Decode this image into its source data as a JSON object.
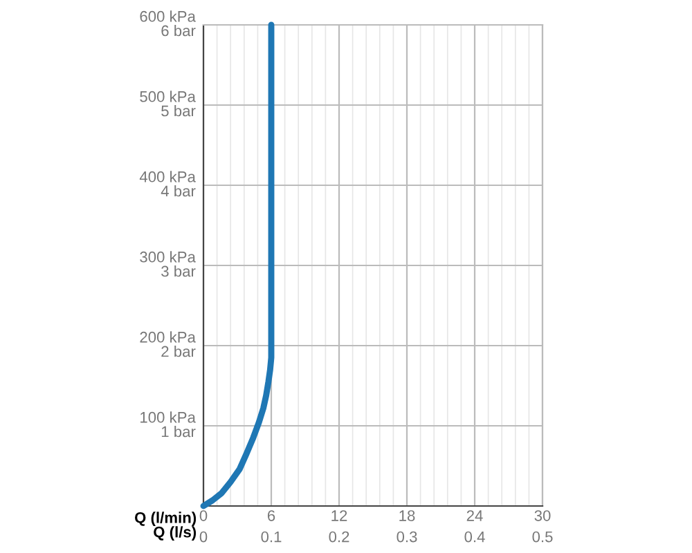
{
  "chart_data": {
    "type": "line",
    "xlabel": "Q (l/min)",
    "x2label": "Q (l/s)",
    "series": [
      {
        "color": "#1f77b4",
        "x": [
          0,
          0.8,
          1.6,
          2.4,
          3.2,
          3.8,
          4.4,
          4.9,
          5.3,
          5.55,
          5.75,
          5.9,
          6,
          6,
          6
        ],
        "values": [
          0,
          7,
          16,
          30,
          46,
          65,
          85,
          104,
          122,
          138,
          155,
          170,
          185,
          200,
          600
        ]
      }
    ],
    "xlim": [
      0,
      30
    ],
    "xticks": [
      0,
      6,
      12,
      18,
      24,
      30
    ],
    "x2lim": [
      0,
      0.5
    ],
    "x2ticks": [
      0,
      0.1,
      0.2,
      0.3,
      0.4,
      0.5
    ],
    "ylim": [
      0,
      600
    ],
    "yticks": [
      {
        "value": 100,
        "label": "100 kPa"
      },
      {
        "value": 200,
        "label": "200 kPa"
      },
      {
        "value": 300,
        "label": "300 kPa"
      },
      {
        "value": 400,
        "label": "400 kPa"
      },
      {
        "value": 500,
        "label": "500 kPa"
      },
      {
        "value": 600,
        "label": "600 kPa"
      }
    ],
    "y2lim": [
      0,
      6
    ],
    "y2ticks": [
      {
        "value": 1,
        "label": "1 bar"
      },
      {
        "value": 2,
        "label": "2 bar"
      },
      {
        "value": 3,
        "label": "3 bar"
      },
      {
        "value": 4,
        "label": "4 bar"
      },
      {
        "value": 5,
        "label": "5 bar"
      },
      {
        "value": 6,
        "label": "6 bar"
      }
    ],
    "grid": true,
    "marker": "none",
    "line_style": "solid",
    "legend": false
  }
}
